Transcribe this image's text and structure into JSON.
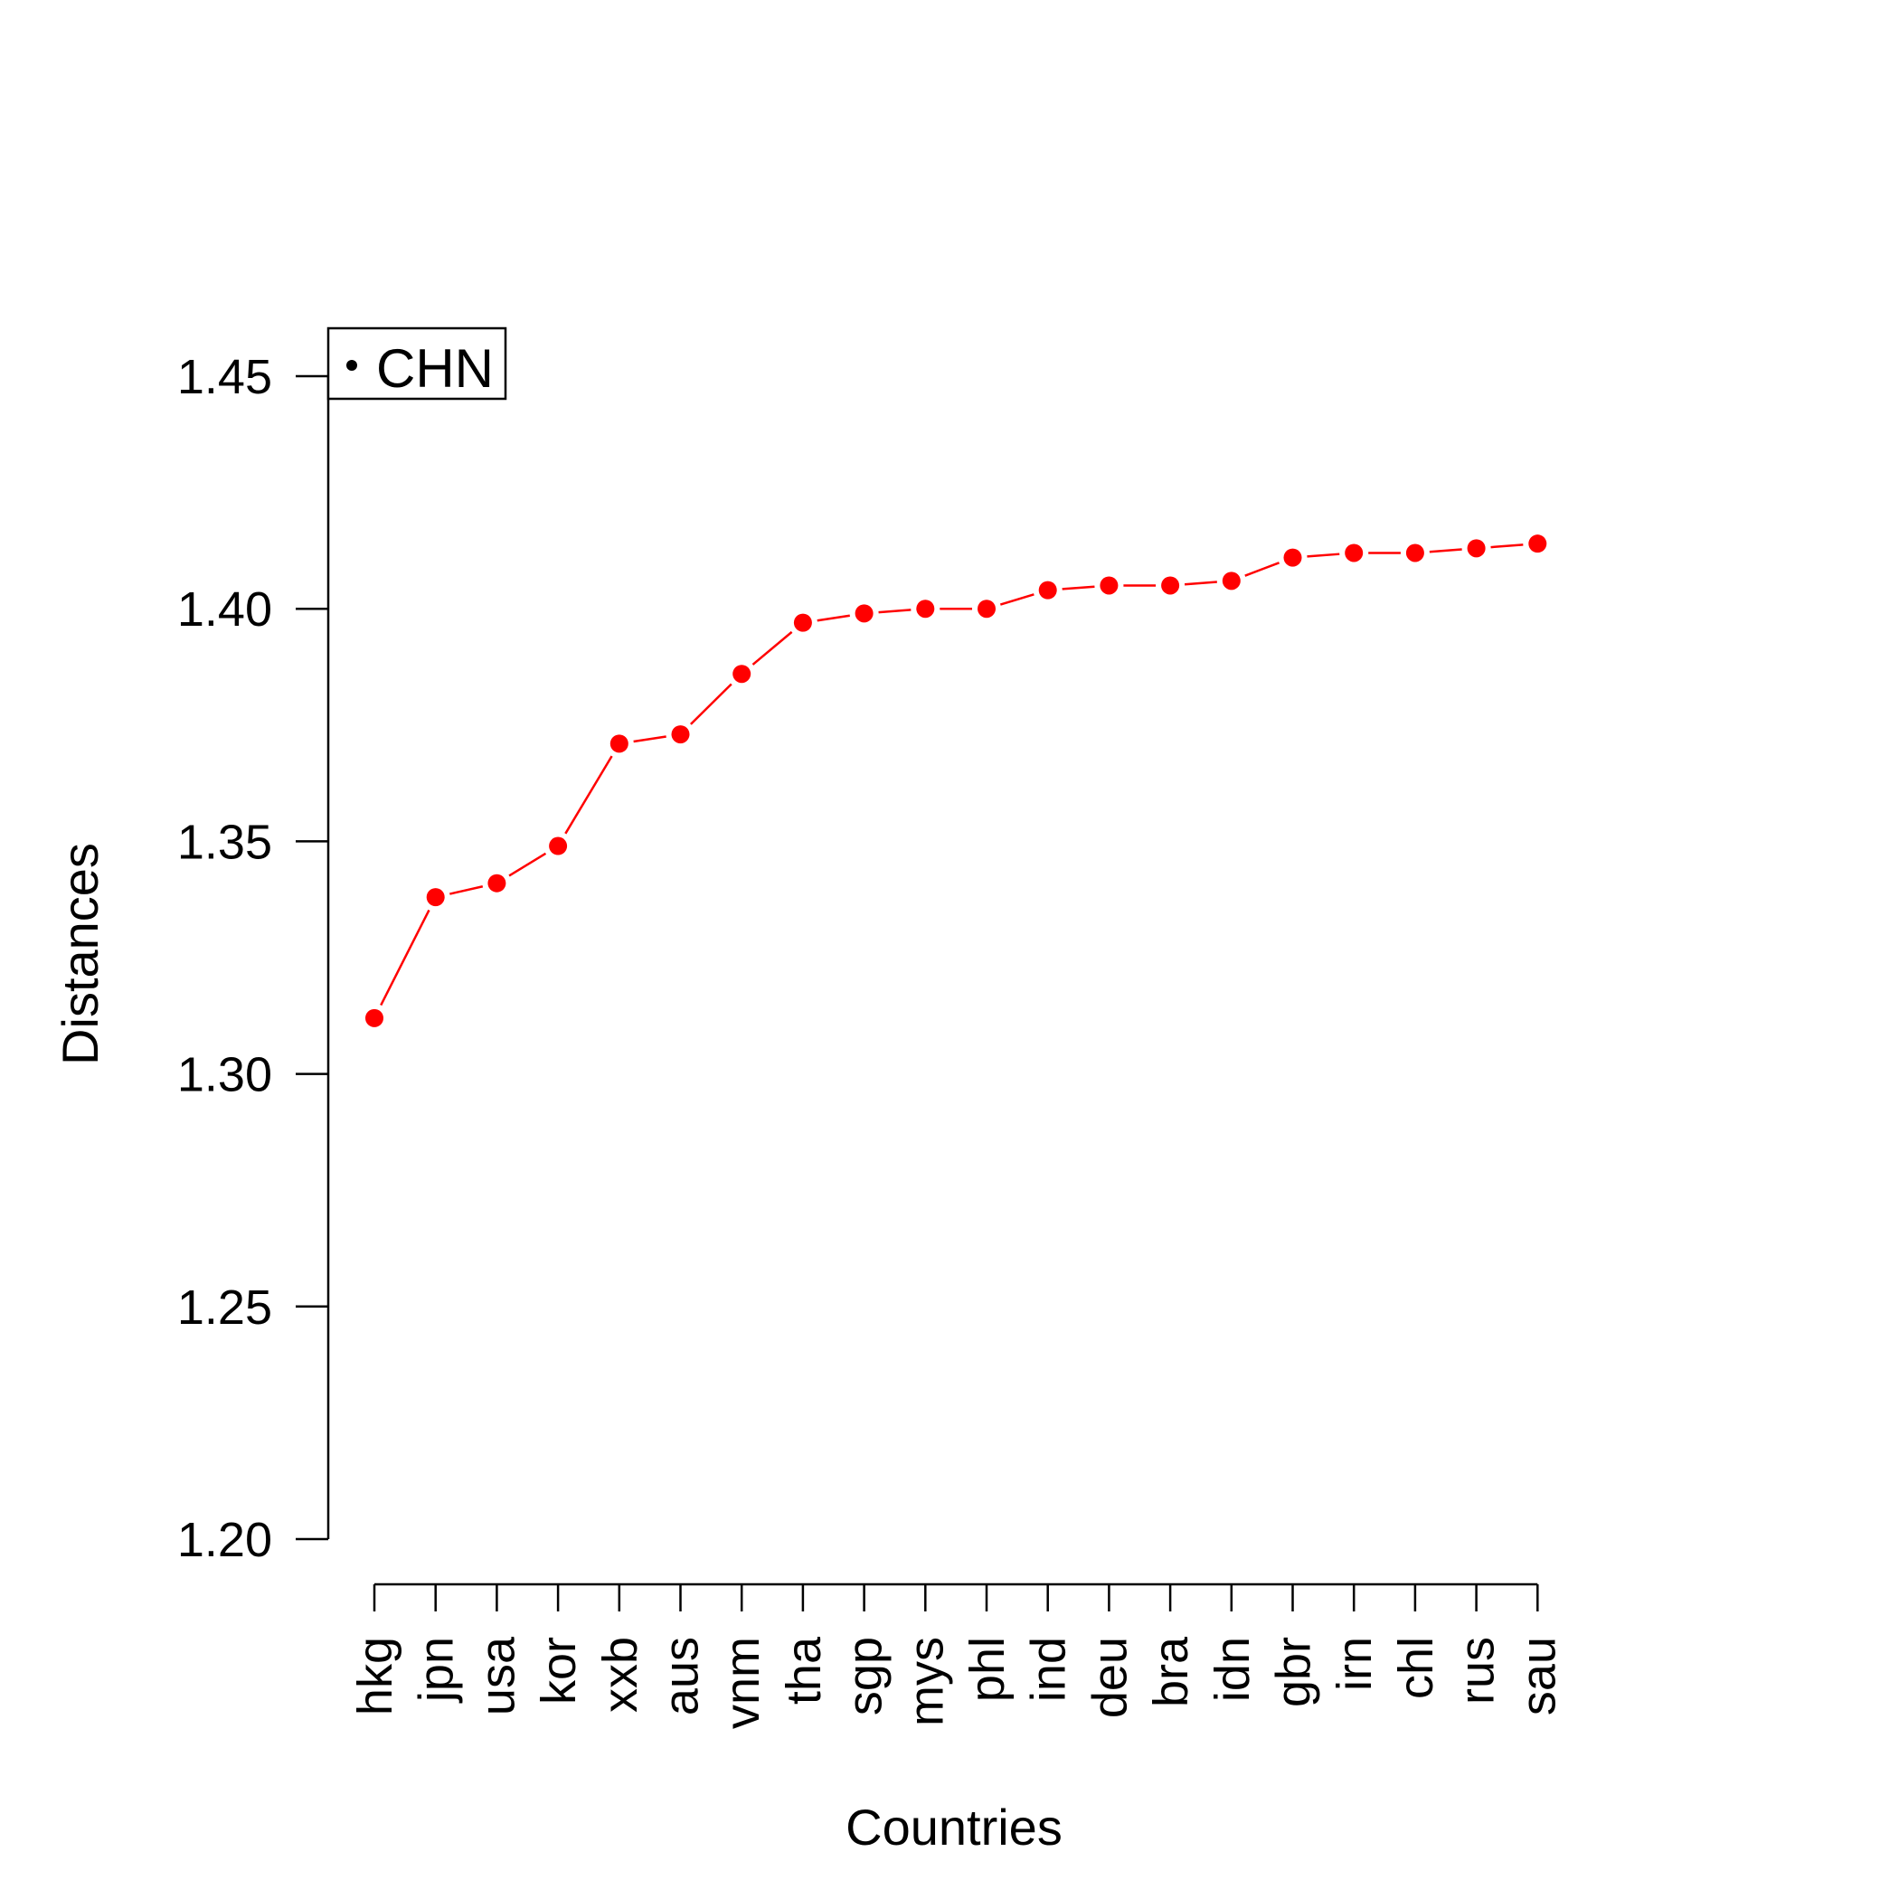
{
  "chart_data": {
    "type": "line",
    "title": "",
    "xlabel": "Countries",
    "ylabel": "Distances",
    "categories": [
      "hkg",
      "jpn",
      "usa",
      "kor",
      "xxb",
      "aus",
      "vnm",
      "tha",
      "sgp",
      "mys",
      "phl",
      "ind",
      "deu",
      "bra",
      "idn",
      "gbr",
      "irn",
      "chl",
      "rus",
      "sau"
    ],
    "series": [
      {
        "name": "CHN",
        "values": [
          1.312,
          1.338,
          1.341,
          1.349,
          1.371,
          1.373,
          1.386,
          1.397,
          1.399,
          1.4,
          1.4,
          1.404,
          1.405,
          1.405,
          1.406,
          1.411,
          1.412,
          1.412,
          1.413,
          1.414
        ]
      }
    ],
    "ylim": [
      1.2,
      1.46
    ],
    "yticks": [
      "1.20",
      "1.25",
      "1.30",
      "1.35",
      "1.40",
      "1.45"
    ],
    "grid": false,
    "legend": {
      "position": "top-left",
      "label": "CHN"
    },
    "colors": {
      "series": "#ff0000",
      "axis": "#000000"
    }
  }
}
